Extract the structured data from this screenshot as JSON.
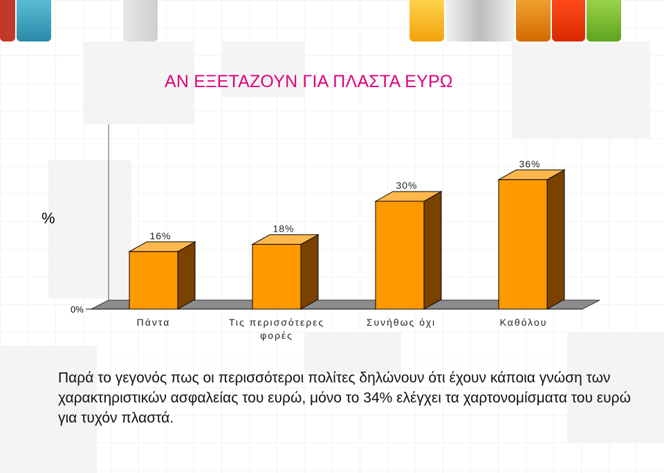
{
  "title": "ΑΝ ΕΞΕΤΑΖΟΥΝ ΓΙΑ ΠΛΑΣΤΑ ΕΥΡΩ",
  "y_unit": "%",
  "caption": "Παρά το γεγονός πως οι περισσότεροι πολίτες δηλώνουν ότι έχουν κάποια γνώση των χαρακτηριστικών ασφαλείας του ευρώ, μόνο το 34% ελέγχει τα χαρτονομίσματα του ευρώ για τυχόν πλαστά.",
  "colors": {
    "title": "#e0007a",
    "bar_front": "#ff9900",
    "bar_side": "#7a4100",
    "bar_top": "#ffb84d",
    "floor": "#8c8c8c"
  },
  "chart_data": {
    "type": "bar",
    "style": "3d",
    "categories": [
      "Πάντα",
      "Τις περισσότερες φορές",
      "Συνήθως όχι",
      "Καθόλου"
    ],
    "category_lines": [
      [
        "Πάντα"
      ],
      [
        "Τις περισσότερες",
        "φορές"
      ],
      [
        "Συνήθως όχι"
      ],
      [
        "Καθόλου"
      ]
    ],
    "values": [
      16,
      18,
      30,
      36
    ],
    "value_labels": [
      "16%",
      "18%",
      "30%",
      "36%"
    ],
    "ylabel": "%",
    "y_tick_labels": [
      "0%"
    ],
    "ylim": [
      0,
      36
    ],
    "grid": false,
    "legend": false
  }
}
